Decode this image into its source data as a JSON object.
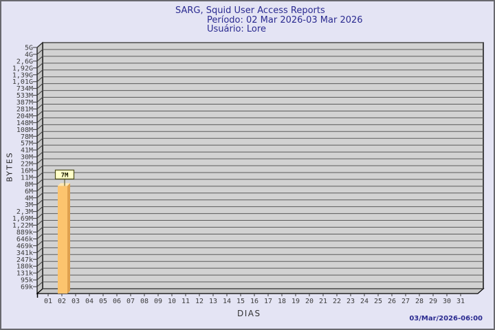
{
  "header": {
    "title": "SARG, Squid User Access Reports",
    "period": "Período: 02 Mar 2026-03 Mar 2026",
    "user": "Usuário: Lore"
  },
  "axes": {
    "y_title": "BYTES",
    "x_title": "DIAS"
  },
  "footer": {
    "timestamp": "03/Mar/2026-06:00"
  },
  "colors": {
    "background": "#e4e4f4",
    "frame_border": "#68686e",
    "title_text": "#2a2a90",
    "plot_bg": "#d2d2d2",
    "wall": "#c6c6c6",
    "floor": "#c6c6c6",
    "grid_line": "#5a5a5a",
    "axis_line": "#000000",
    "tick_text": "#3a3a3a",
    "bar_front": "#fcc46e",
    "bar_side": "#dfa14e",
    "bar_top": "#fde8b4",
    "annotation_bg": "#ffffc8",
    "annotation_border": "#4d4d1a",
    "annotation_text": "#1a1a00"
  },
  "chart_data": {
    "type": "bar",
    "title": "SARG, Squid User Access Reports",
    "subtitle": "Período: 02 Mar 2026-03 Mar 2026 / Usuário: Lore",
    "xlabel": "DIAS",
    "ylabel": "BYTES",
    "scale": "log",
    "grid": true,
    "legend": false,
    "style_3d": true,
    "categories": [
      "01",
      "02",
      "03",
      "04",
      "05",
      "06",
      "07",
      "08",
      "09",
      "10",
      "11",
      "12",
      "13",
      "14",
      "15",
      "16",
      "17",
      "18",
      "19",
      "20",
      "21",
      "22",
      "23",
      "24",
      "25",
      "26",
      "27",
      "28",
      "29",
      "30",
      "31"
    ],
    "series": [
      {
        "name": "Lore",
        "values": [
          0,
          7000000,
          0,
          0,
          0,
          0,
          0,
          0,
          0,
          0,
          0,
          0,
          0,
          0,
          0,
          0,
          0,
          0,
          0,
          0,
          0,
          0,
          0,
          0,
          0,
          0,
          0,
          0,
          0,
          0,
          0
        ]
      }
    ],
    "bar_value_labels": [
      "",
      "7M",
      "",
      "",
      "",
      "",
      "",
      "",
      "",
      "",
      "",
      "",
      "",
      "",
      "",
      "",
      "",
      "",
      "",
      "",
      "",
      "",
      "",
      "",
      "",
      "",
      "",
      "",
      "",
      "",
      ""
    ],
    "y_tick_labels": [
      "5G",
      "4G",
      "2,6G",
      "1,92G",
      "1,39G",
      "1,01G",
      "734M",
      "533M",
      "387M",
      "281M",
      "204M",
      "148M",
      "108M",
      "78M",
      "57M",
      "41M",
      "30M",
      "22M",
      "16M",
      "11M",
      "8M",
      "6M",
      "4M",
      "3M",
      "2,3M",
      "1,69M",
      "1,22M",
      "889k",
      "646k",
      "469k",
      "341k",
      "247k",
      "180k",
      "131k",
      "95k",
      "69k"
    ],
    "ylim": [
      "50k",
      "5G"
    ]
  }
}
